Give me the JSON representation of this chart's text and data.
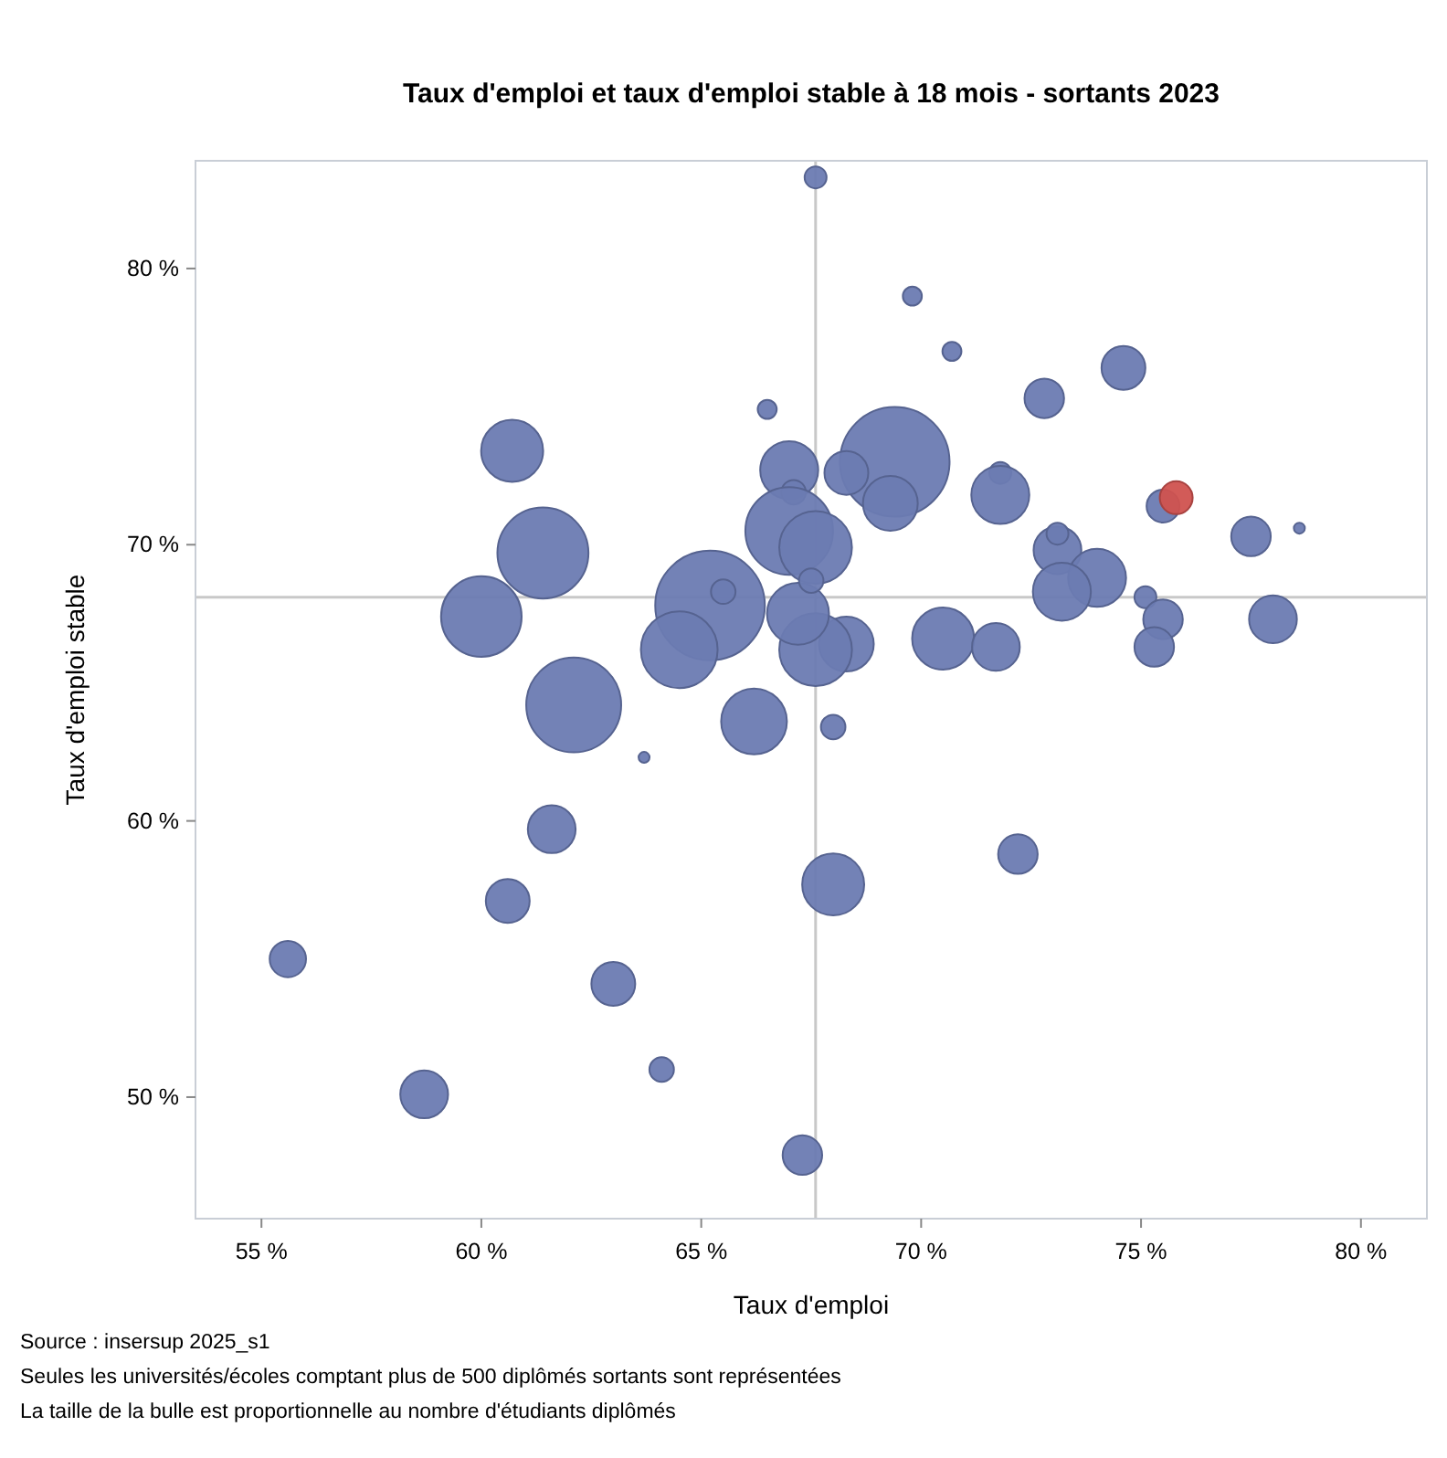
{
  "chart_data": {
    "type": "bubble",
    "title": "Taux d'emploi et taux d'emploi stable à 18 mois - sortants 2023",
    "xlabel": "Taux d'emploi",
    "ylabel": "Taux d'emploi stable",
    "xlim": [
      53.5,
      81.5
    ],
    "ylim": [
      45.6,
      83.9
    ],
    "xticks": [
      {
        "value": 55,
        "label": "55 %"
      },
      {
        "value": 60,
        "label": "60 %"
      },
      {
        "value": 65,
        "label": "65 %"
      },
      {
        "value": 70,
        "label": "70 %"
      },
      {
        "value": 75,
        "label": "75 %"
      },
      {
        "value": 80,
        "label": "80 %"
      }
    ],
    "yticks": [
      {
        "value": 50,
        "label": "50 %"
      },
      {
        "value": 60,
        "label": "60 %"
      },
      {
        "value": 70,
        "label": "70 %"
      },
      {
        "value": 80,
        "label": "80 %"
      }
    ],
    "grid": false,
    "ref_lines": [
      {
        "axis": "x",
        "value": 67.6,
        "color": "#c8c8c8"
      },
      {
        "axis": "y",
        "value": 68.1,
        "color": "#c8c8c8"
      }
    ],
    "series": [
      {
        "color": "#6b7bb2",
        "x": [
          67.6,
          69.8,
          70.7,
          74.6,
          72.8,
          66.5,
          69.4,
          60.7,
          67.0,
          68.3,
          71.8,
          71.8,
          75.5,
          67.1,
          61.4,
          77.5,
          78.6,
          69.3,
          67.0,
          67.6,
          73.1,
          73.1,
          74.0,
          73.2,
          75.1,
          75.5,
          75.3,
          78.0,
          70.5,
          71.7,
          68.3,
          67.6,
          65.2,
          65.5,
          64.5,
          60.0,
          67.2,
          67.5,
          62.1,
          66.2,
          63.7,
          61.6,
          60.6,
          55.6,
          63.0,
          64.1,
          58.7,
          67.3,
          68.0,
          68.0,
          72.2
        ],
        "values": [
          83.3,
          79.0,
          77.0,
          76.4,
          75.3,
          74.9,
          73.0,
          73.4,
          72.7,
          72.6,
          72.6,
          71.8,
          71.4,
          71.9,
          69.7,
          70.3,
          70.6,
          71.5,
          70.5,
          69.9,
          69.8,
          70.4,
          68.8,
          68.3,
          68.1,
          67.3,
          66.3,
          67.3,
          66.6,
          66.3,
          66.4,
          66.2,
          67.8,
          68.3,
          66.2,
          67.4,
          67.5,
          68.7,
          64.2,
          63.6,
          62.3,
          59.7,
          57.1,
          55.0,
          54.1,
          51.0,
          50.1,
          47.9,
          57.7,
          63.4,
          58.8
        ],
        "sizes": [
          0.04,
          0.03,
          0.03,
          0.16,
          0.13,
          0.03,
          1,
          0.32,
          0.28,
          0.16,
          0.04,
          0.28,
          0.09,
          0.05,
          0.69,
          0.13,
          0.01,
          0.25,
          0.64,
          0.44,
          0.19,
          0.04,
          0.28,
          0.28,
          0.04,
          0.13,
          0.13,
          0.19,
          0.32,
          0.19,
          0.25,
          0.44,
          1,
          0.05,
          0.49,
          0.54,
          0.32,
          0.05,
          0.75,
          0.36,
          0.01,
          0.19,
          0.16,
          0.11,
          0.16,
          0.05,
          0.19,
          0.13,
          0.32,
          0.05,
          0.13
        ]
      },
      {
        "color": "#d0524f",
        "x": [
          75.8
        ],
        "values": [
          71.7
        ],
        "sizes": [
          0.09
        ]
      }
    ],
    "annotations": [
      "Source : insersup 2025_s1",
      "Seules les universités/écoles comptant plus de 500 diplômés sortants sont représentées",
      "La taille de la bulle est proportionnelle au nombre d'étudiants diplômés"
    ]
  }
}
